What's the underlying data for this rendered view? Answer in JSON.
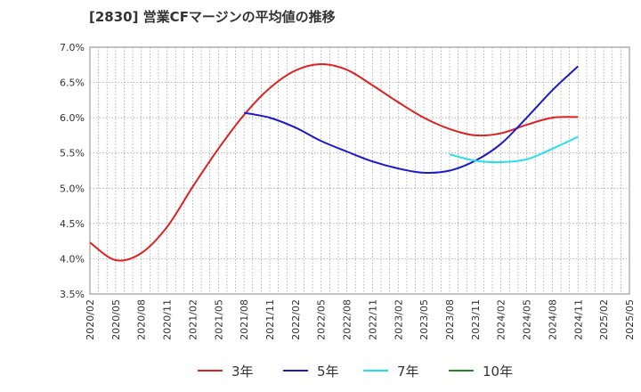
{
  "title": "[2830]  営業CFマージンの平均値の推移",
  "chart_data": {
    "type": "line",
    "title": "[2830]  営業CFマージンの平均値の推移",
    "xlabel": "",
    "ylabel": "",
    "grid": true,
    "legend_position": "bottom",
    "x": [
      "2020/02",
      "2020/05",
      "2020/08",
      "2020/11",
      "2021/02",
      "2021/05",
      "2021/08",
      "2021/11",
      "2022/02",
      "2022/05",
      "2022/08",
      "2022/11",
      "2023/02",
      "2023/05",
      "2023/08",
      "2023/11",
      "2024/02",
      "2024/05",
      "2024/08",
      "2024/11",
      "2025/02",
      "2025/05"
    ],
    "ylim": [
      3.5,
      7.0
    ],
    "yticks": [
      "3.5%",
      "4.0%",
      "4.5%",
      "5.0%",
      "5.5%",
      "6.0%",
      "6.5%",
      "7.0%"
    ],
    "series": [
      {
        "name": "3年",
        "color": "#e02020",
        "values": [
          4.23,
          3.98,
          4.08,
          4.45,
          5.02,
          5.56,
          6.04,
          6.42,
          6.67,
          6.76,
          6.68,
          6.46,
          6.22,
          6.0,
          5.84,
          5.75,
          5.78,
          5.9,
          6.0,
          6.01,
          null,
          null
        ]
      },
      {
        "name": "5年",
        "color": "#1a1acc",
        "values": [
          null,
          null,
          null,
          null,
          null,
          null,
          6.07,
          6.0,
          5.86,
          5.67,
          5.52,
          5.38,
          5.28,
          5.22,
          5.25,
          5.39,
          5.63,
          6.0,
          6.39,
          6.73,
          null,
          null
        ]
      },
      {
        "name": "7年",
        "color": "#22e0f0",
        "values": [
          null,
          null,
          null,
          null,
          null,
          null,
          null,
          null,
          null,
          null,
          null,
          null,
          null,
          null,
          5.48,
          5.39,
          5.37,
          5.41,
          5.56,
          5.73,
          null,
          null
        ]
      },
      {
        "name": "10年",
        "color": "#228b22",
        "values": [
          null,
          null,
          null,
          null,
          null,
          null,
          null,
          null,
          null,
          null,
          null,
          null,
          null,
          null,
          null,
          null,
          null,
          null,
          null,
          null,
          null,
          null
        ]
      }
    ]
  }
}
